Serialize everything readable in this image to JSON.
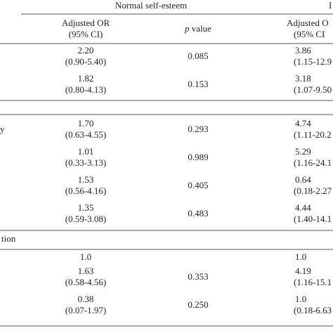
{
  "header": {
    "group_1": "Normal self-esteem",
    "group_2": "I",
    "col_1": [
      "Adjusted OR",
      "(95% CI)"
    ],
    "col_2_italic": "p",
    "col_2": "value",
    "col_3": [
      "Adjusted O",
      "(95% CI"
    ]
  },
  "sections": [
    {
      "rows": [
        [
          "2.20",
          "(0.90-5.40)",
          "0.085",
          "3.86",
          "(1.15-12.9"
        ],
        [
          "1.82",
          "(0.80-4.13)",
          "0.153",
          "3.18",
          "(1.07-9.50"
        ]
      ]
    },
    {
      "label": "y",
      "rows": [
        [
          "1.70",
          "(0.63-4.55)",
          "0.293",
          "4.74",
          "(1.11-20.2"
        ],
        [
          "1.01",
          "(0.33-3.13)",
          "0.989",
          "5.29",
          "(1.16-24.1"
        ],
        [
          "1.53",
          "(0.56-4.16)",
          "0.405",
          "0.64",
          "(0.18-2.27"
        ],
        [
          "1.35",
          "(0.59-3.08)",
          "0.483",
          "4.44",
          "(1.40-14.1"
        ]
      ]
    },
    {
      "label": "tion",
      "rows": [
        [
          "1.0",
          null,
          null,
          "1.0",
          null
        ],
        [
          "1.63",
          "(0.58-4.56)",
          "0.353",
          "4.19",
          "(1.16-15.1"
        ],
        [
          "0.38",
          "(0.07-1.97)",
          "0.250",
          "1.0",
          "(0.18-6.63"
        ]
      ]
    }
  ]
}
